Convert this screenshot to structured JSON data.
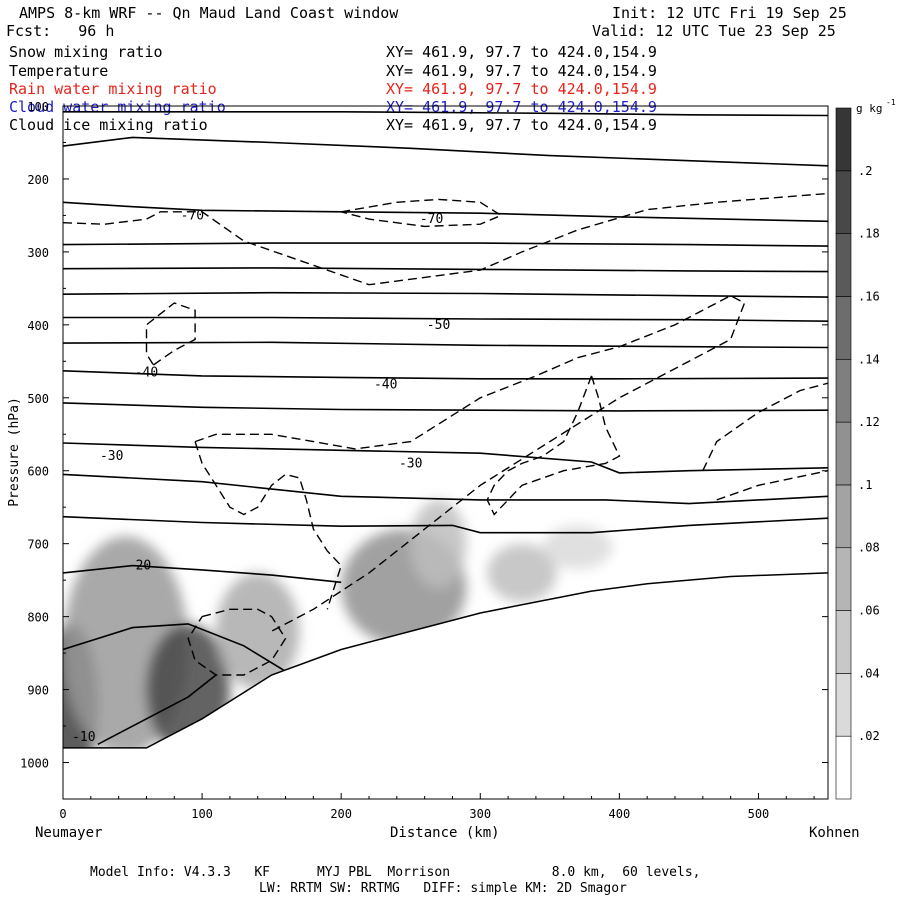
{
  "header": {
    "title": "AMPS 8-km WRF -- Qn Maud Land Coast window",
    "forecast": "Fcst:   96 h",
    "init": "Init: 12 UTC Fri 19 Sep 25",
    "valid": "Valid: 12 UTC Tue 23 Sep 25"
  },
  "fields": [
    {
      "label": "Snow mixing ratio",
      "xy": "XY= 461.9, 97.7 to 424.0,154.9",
      "color": "#000000"
    },
    {
      "label": "Temperature",
      "xy": "XY= 461.9, 97.7 to 424.0,154.9",
      "color": "#000000"
    },
    {
      "label": "Rain water mixing ratio",
      "xy": "XY= 461.9, 97.7 to 424.0,154.9",
      "color": "#e8231c"
    },
    {
      "label": "Cloud water mixing ratio",
      "xy": "XY= 461.9, 97.7 to 424.0,154.9",
      "color": "#1c1ccc"
    },
    {
      "label": "Cloud ice mixing ratio",
      "xy": "XY= 461.9, 97.7 to 424.0,154.9",
      "color": "#000000"
    }
  ],
  "footer": {
    "line1": "Model Info: V4.3.3   KF      MYJ PBL  Morrison             8.0 km,  60 levels,",
    "line2": "LW: RRTM SW: RRTMG   DIFF: simple KM: 2D Smagor"
  },
  "chart_data": {
    "type": "heatmap",
    "title": "AMPS 8-km WRF -- Qn Maud Land Coast window",
    "xlabel": "Distance (km)",
    "ylabel": "Pressure (hPa)",
    "x_left_label": "Neumayer",
    "x_right_label": "Kohnen",
    "xlim": [
      0,
      550
    ],
    "ylim": [
      1050,
      100
    ],
    "x_ticks": [
      0,
      100,
      200,
      300,
      400,
      500
    ],
    "y_ticks": [
      100,
      200,
      300,
      400,
      500,
      600,
      700,
      800,
      900,
      1000
    ],
    "colorbar": {
      "unit": "g kg",
      "unit_exp": "-1",
      "range": [
        0,
        0.22
      ],
      "ticks": [
        0.02,
        0.04,
        0.06,
        0.08,
        0.1,
        0.12,
        0.14,
        0.16,
        0.18,
        0.2
      ],
      "tick_labels": [
        ".02",
        ".04",
        ".06",
        ".08",
        ".1",
        ".12",
        ".14",
        ".16",
        ".18",
        ".2"
      ]
    },
    "terrain": [
      [
        0,
        980
      ],
      [
        60,
        980
      ],
      [
        100,
        940
      ],
      [
        150,
        880
      ],
      [
        200,
        845
      ],
      [
        260,
        815
      ],
      [
        300,
        795
      ],
      [
        340,
        780
      ],
      [
        380,
        765
      ],
      [
        420,
        755
      ],
      [
        480,
        745
      ],
      [
        550,
        740
      ]
    ],
    "snow_blobs": [
      {
        "x": 5,
        "p": 920,
        "rx": 20,
        "rp": 110,
        "v": 0.2
      },
      {
        "x": 45,
        "p": 840,
        "rx": 45,
        "rp": 150,
        "v": 0.1
      },
      {
        "x": 90,
        "p": 900,
        "rx": 30,
        "rp": 90,
        "v": 0.19
      },
      {
        "x": 140,
        "p": 820,
        "rx": 30,
        "rp": 80,
        "v": 0.08
      },
      {
        "x": 245,
        "p": 760,
        "rx": 45,
        "rp": 80,
        "v": 0.11
      },
      {
        "x": 270,
        "p": 700,
        "rx": 20,
        "rp": 60,
        "v": 0.06
      },
      {
        "x": 330,
        "p": 740,
        "rx": 25,
        "rp": 40,
        "v": 0.06
      },
      {
        "x": 370,
        "p": 705,
        "rx": 25,
        "rp": 30,
        "v": 0.03
      }
    ],
    "isotherm_labels": [
      {
        "text": "-70",
        "x": 93,
        "p": 250
      },
      {
        "text": "-70",
        "x": 265,
        "p": 255
      },
      {
        "text": "-50",
        "x": 270,
        "p": 400
      },
      {
        "text": "-40",
        "x": 60,
        "p": 465
      },
      {
        "text": "-40",
        "x": 232,
        "p": 482
      },
      {
        "text": "-30",
        "x": 35,
        "p": 580
      },
      {
        "text": "-30",
        "x": 250,
        "p": 590
      },
      {
        "text": "-20",
        "x": 55,
        "p": 730
      },
      {
        "text": "-10",
        "x": 15,
        "p": 965
      }
    ],
    "isotherms": [
      [
        [
          0,
          108
        ],
        [
          200,
          108
        ],
        [
          350,
          110
        ],
        [
          450,
          112
        ],
        [
          550,
          113
        ]
      ],
      [
        [
          0,
          155
        ],
        [
          50,
          143
        ],
        [
          150,
          150
        ],
        [
          250,
          158
        ],
        [
          350,
          168
        ],
        [
          450,
          175
        ],
        [
          550,
          182
        ]
      ],
      [
        [
          0,
          232
        ],
        [
          50,
          238
        ],
        [
          100,
          243
        ],
        [
          200,
          245
        ],
        [
          300,
          247
        ],
        [
          400,
          252
        ],
        [
          550,
          258
        ]
      ],
      [
        [
          0,
          290
        ],
        [
          150,
          288
        ],
        [
          300,
          288
        ],
        [
          450,
          290
        ],
        [
          550,
          292
        ]
      ],
      [
        [
          0,
          323
        ],
        [
          150,
          322
        ],
        [
          300,
          324
        ],
        [
          450,
          326
        ],
        [
          550,
          327
        ]
      ],
      [
        [
          0,
          358
        ],
        [
          150,
          356
        ],
        [
          300,
          357
        ],
        [
          450,
          360
        ],
        [
          550,
          362
        ]
      ],
      [
        [
          0,
          390
        ],
        [
          150,
          390
        ],
        [
          300,
          392
        ],
        [
          450,
          393
        ],
        [
          550,
          395
        ]
      ],
      [
        [
          0,
          425
        ],
        [
          150,
          424
        ],
        [
          300,
          428
        ],
        [
          450,
          430
        ],
        [
          550,
          431
        ]
      ],
      [
        [
          0,
          463
        ],
        [
          100,
          470
        ],
        [
          200,
          472
        ],
        [
          300,
          474
        ],
        [
          400,
          474
        ],
        [
          550,
          473
        ]
      ],
      [
        [
          0,
          507
        ],
        [
          100,
          513
        ],
        [
          200,
          516
        ],
        [
          300,
          517
        ],
        [
          400,
          518
        ],
        [
          550,
          517
        ]
      ],
      [
        [
          0,
          562
        ],
        [
          100,
          568
        ],
        [
          200,
          572
        ],
        [
          300,
          576
        ],
        [
          380,
          588
        ],
        [
          400,
          603
        ],
        [
          450,
          600
        ],
        [
          550,
          596
        ]
      ],
      [
        [
          0,
          605
        ],
        [
          100,
          615
        ],
        [
          200,
          635
        ],
        [
          300,
          640
        ],
        [
          390,
          640
        ],
        [
          450,
          645
        ],
        [
          550,
          635
        ]
      ],
      [
        [
          0,
          663
        ],
        [
          100,
          671
        ],
        [
          200,
          676
        ],
        [
          280,
          675
        ],
        [
          300,
          685
        ],
        [
          380,
          685
        ],
        [
          450,
          675
        ],
        [
          550,
          665
        ]
      ],
      [
        [
          0,
          740
        ],
        [
          50,
          730
        ],
        [
          100,
          736
        ],
        [
          150,
          743
        ],
        [
          200,
          753
        ]
      ],
      [
        [
          0,
          845
        ],
        [
          50,
          815
        ],
        [
          90,
          810
        ],
        [
          130,
          840
        ],
        [
          160,
          875
        ],
        [
          170,
          895
        ]
      ],
      [
        [
          25,
          975
        ],
        [
          60,
          940
        ],
        [
          90,
          910
        ],
        [
          110,
          880
        ]
      ]
    ],
    "cloud_ice_contours": [
      [
        [
          0,
          260
        ],
        [
          30,
          262
        ],
        [
          60,
          255
        ],
        [
          70,
          245
        ],
        [
          100,
          245
        ],
        [
          130,
          285
        ],
        [
          175,
          315
        ],
        [
          220,
          345
        ],
        [
          260,
          335
        ],
        [
          300,
          325
        ],
        [
          330,
          300
        ],
        [
          370,
          270
        ],
        [
          420,
          242
        ],
        [
          470,
          232
        ],
        [
          550,
          220
        ]
      ],
      [
        [
          200,
          245
        ],
        [
          240,
          232
        ],
        [
          270,
          228
        ],
        [
          300,
          232
        ],
        [
          315,
          250
        ],
        [
          300,
          262
        ],
        [
          260,
          265
        ],
        [
          220,
          255
        ],
        [
          200,
          245
        ]
      ],
      [
        [
          65,
          455
        ],
        [
          80,
          435
        ],
        [
          95,
          420
        ],
        [
          95,
          380
        ],
        [
          80,
          370
        ],
        [
          60,
          400
        ],
        [
          60,
          440
        ],
        [
          65,
          455
        ]
      ],
      [
        [
          95,
          560
        ],
        [
          110,
          550
        ],
        [
          150,
          550
        ],
        [
          180,
          560
        ],
        [
          210,
          570
        ],
        [
          250,
          560
        ],
        [
          300,
          500
        ],
        [
          340,
          470
        ],
        [
          370,
          445
        ],
        [
          400,
          430
        ],
        [
          440,
          400
        ],
        [
          480,
          360
        ],
        [
          490,
          370
        ],
        [
          480,
          420
        ],
        [
          440,
          460
        ],
        [
          400,
          500
        ],
        [
          350,
          560
        ],
        [
          300,
          620
        ],
        [
          260,
          680
        ],
        [
          220,
          740
        ],
        [
          180,
          790
        ],
        [
          150,
          820
        ]
      ],
      [
        [
          95,
          560
        ],
        [
          100,
          590
        ],
        [
          110,
          620
        ],
        [
          120,
          650
        ],
        [
          130,
          660
        ],
        [
          140,
          650
        ],
        [
          150,
          620
        ],
        [
          160,
          605
        ],
        [
          170,
          610
        ],
        [
          175,
          640
        ],
        [
          180,
          680
        ],
        [
          190,
          710
        ],
        [
          200,
          730
        ],
        [
          195,
          760
        ],
        [
          190,
          790
        ]
      ],
      [
        [
          380,
          470
        ],
        [
          370,
          520
        ],
        [
          360,
          560
        ],
        [
          345,
          580
        ],
        [
          330,
          590
        ],
        [
          320,
          600
        ],
        [
          310,
          620
        ],
        [
          305,
          640
        ],
        [
          310,
          660
        ],
        [
          320,
          640
        ],
        [
          330,
          620
        ],
        [
          360,
          600
        ],
        [
          390,
          590
        ],
        [
          400,
          580
        ],
        [
          390,
          540
        ],
        [
          385,
          500
        ],
        [
          380,
          470
        ]
      ],
      [
        [
          460,
          600
        ],
        [
          470,
          560
        ],
        [
          500,
          520
        ],
        [
          530,
          490
        ],
        [
          550,
          480
        ]
      ],
      [
        [
          470,
          640
        ],
        [
          500,
          620
        ],
        [
          550,
          600
        ]
      ],
      [
        [
          100,
          800
        ],
        [
          120,
          790
        ],
        [
          140,
          790
        ],
        [
          150,
          800
        ],
        [
          160,
          830
        ],
        [
          150,
          860
        ],
        [
          130,
          880
        ],
        [
          110,
          880
        ],
        [
          95,
          860
        ],
        [
          90,
          830
        ],
        [
          100,
          800
        ]
      ]
    ]
  }
}
